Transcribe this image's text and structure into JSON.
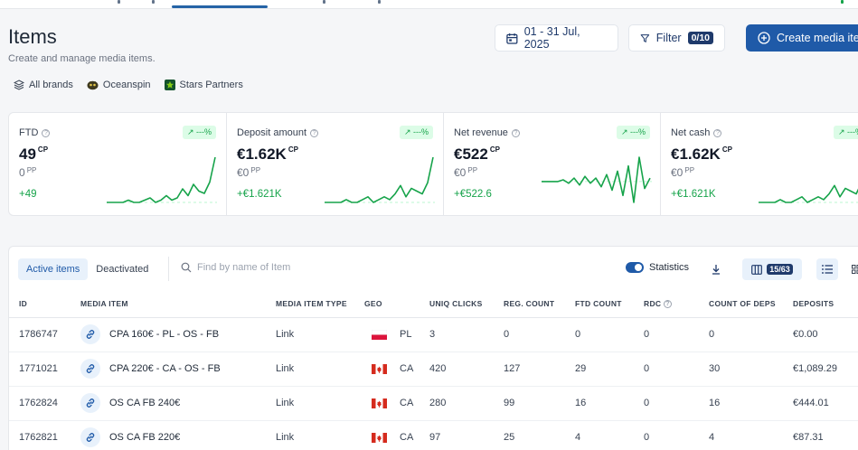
{
  "colors": {
    "accent": "#1f5aa8",
    "positive": "#16a34a",
    "badge_bg": "#dcfce7"
  },
  "header": {
    "title": "Items",
    "subtitle": "Create and manage media items.",
    "date_range": "01 - 31 Jul, 2025",
    "filter_label": "Filter",
    "filter_count": "0/10",
    "create_label": "Create media ite"
  },
  "brands": [
    {
      "label": "All brands",
      "icon": "layers-icon"
    },
    {
      "label": "Oceanspin",
      "icon": "oceanspin-logo-icon"
    },
    {
      "label": "Stars Partners",
      "icon": "star-icon"
    }
  ],
  "kpis": [
    {
      "label": "FTD",
      "badge": "---%",
      "value": "49",
      "value_sup": "CP",
      "sub": "0",
      "sub_sup": "PP",
      "delta": "+49",
      "spark": [
        0,
        0,
        0,
        0,
        1,
        0,
        0,
        1,
        2,
        0,
        1,
        3,
        1,
        2,
        6,
        3,
        8,
        5,
        4,
        9,
        20
      ]
    },
    {
      "label": "Deposit amount",
      "badge": "---%",
      "value": "€1.62K",
      "value_sup": "CP",
      "sub": "€0",
      "sub_sup": "PP",
      "delta": "+€1.621K",
      "spark": [
        0,
        0,
        0,
        0,
        1,
        0,
        0,
        1,
        2,
        0,
        1,
        2,
        1,
        3,
        6,
        2,
        5,
        4,
        3,
        7,
        16
      ]
    },
    {
      "label": "Net revenue",
      "badge": "---%",
      "value": "€522",
      "value_sup": "CP",
      "sub": "€0",
      "sub_sup": "PP",
      "delta": "+€522.6",
      "spark": [
        0,
        0,
        0,
        0,
        1,
        -1,
        2,
        -2,
        3,
        -1,
        2,
        -3,
        4,
        -5,
        6,
        -8,
        9,
        -12,
        14,
        -4,
        2
      ]
    },
    {
      "label": "Net cash",
      "badge": "---%",
      "value": "€1.62K",
      "value_sup": "CP",
      "sub": "€0",
      "sub_sup": "PP",
      "delta": "+€1.621K",
      "spark": [
        0,
        0,
        0,
        0,
        1,
        0,
        0,
        1,
        2,
        0,
        1,
        2,
        1,
        3,
        6,
        2,
        5,
        4,
        3,
        7,
        16
      ]
    }
  ],
  "toolbar": {
    "tab_active": "Active items",
    "tab_deactivated": "Deactivated",
    "search_placeholder": "Find by name of Item",
    "statistics_label": "Statistics",
    "columns_count": "15/63"
  },
  "table": {
    "columns": [
      "ID",
      "MEDIA ITEM",
      "MEDIA ITEM TYPE",
      "GEO",
      "UNIQ CLICKS",
      "REG. COUNT",
      "FTD COUNT",
      "RDC",
      "COUNT OF DEPS",
      "DEPOSITS"
    ],
    "rows": [
      {
        "id": "1786747",
        "name": "CPA 160€ - PL - OS - FB",
        "type": "Link",
        "geo": "PL",
        "clicks": "3",
        "reg": "0",
        "ftd": "0",
        "rdc": "0",
        "deps": "0",
        "deposits": "€0.00"
      },
      {
        "id": "1771021",
        "name": "CPA 220€ - CA - OS - FB",
        "type": "Link",
        "geo": "CA",
        "clicks": "420",
        "reg": "127",
        "ftd": "29",
        "rdc": "0",
        "deps": "30",
        "deposits": "€1,089.29"
      },
      {
        "id": "1762824",
        "name": "OS CA FB 240€",
        "type": "Link",
        "geo": "CA",
        "clicks": "280",
        "reg": "99",
        "ftd": "16",
        "rdc": "0",
        "deps": "16",
        "deposits": "€444.01"
      },
      {
        "id": "1762821",
        "name": "OS CA FB 220€",
        "type": "Link",
        "geo": "CA",
        "clicks": "97",
        "reg": "25",
        "ftd": "4",
        "rdc": "0",
        "deps": "4",
        "deposits": "€87.31"
      }
    ]
  }
}
